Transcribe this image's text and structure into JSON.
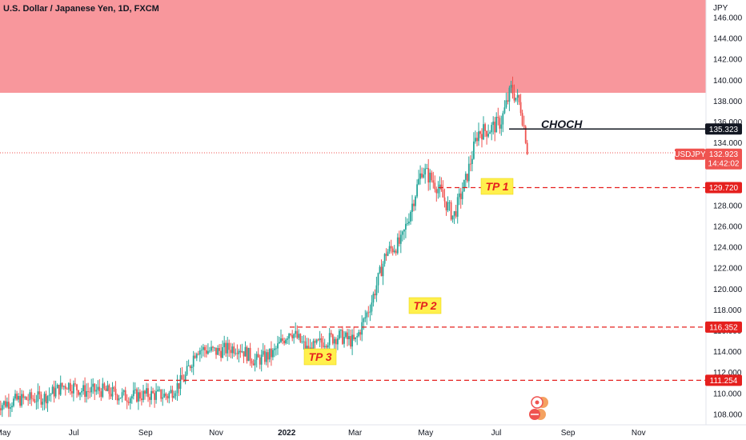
{
  "header": {
    "title": "U.S. Dollar / Japanese Yen, 1D, FXCM"
  },
  "colors": {
    "up": "#26a69a",
    "down": "#ef5350",
    "zone": "#f8979c",
    "target_line": "#e5201e",
    "choch_line": "#131722",
    "tp_box": "#fff04d"
  },
  "chart_data": {
    "type": "candlestick",
    "title": "U.S. Dollar / Japanese Yen, 1D, FXCM",
    "ylabel": "JPY",
    "ylim": [
      106.6,
      147.8
    ],
    "y_ticks": [
      "146.000",
      "144.000",
      "142.000",
      "140.000",
      "138.000",
      "136.000",
      "134.000",
      "132.000",
      "130.000",
      "128.000",
      "126.000",
      "124.000",
      "122.000",
      "120.000",
      "118.000",
      "116.000",
      "114.000",
      "112.000",
      "110.000",
      "108.000"
    ],
    "x_ticks": [
      "May",
      "Jul",
      "Sep",
      "Nov",
      "2022",
      "Mar",
      "May",
      "Jul",
      "Sep",
      "Nov"
    ],
    "x_bold": [
      "2022"
    ],
    "symbol": "USDJPY",
    "last_price": "132.923",
    "countdown": "14:42:02",
    "zones": [
      {
        "from": 139.0,
        "to": 147.8,
        "label": "supply-zone"
      }
    ],
    "levels": [
      {
        "value": 135.323,
        "label": "135.323",
        "style": "solid",
        "annotation": "CHOCH"
      },
      {
        "value": 129.72,
        "label": "129.720",
        "style": "dashed",
        "annotation": "TP 1"
      },
      {
        "value": 116.352,
        "label": "116.352",
        "style": "dashed",
        "annotation": "TP 2"
      },
      {
        "value": 111.254,
        "label": "111.254",
        "style": "dashed",
        "annotation": "TP 3"
      }
    ],
    "price_path": [
      [
        "2021-04-26",
        108.9
      ],
      [
        "2021-05-15",
        109.4
      ],
      [
        "2021-06-05",
        109.6
      ],
      [
        "2021-06-25",
        110.9
      ],
      [
        "2021-07-10",
        110.2
      ],
      [
        "2021-07-25",
        110.3
      ],
      [
        "2021-08-15",
        109.7
      ],
      [
        "2021-09-05",
        109.9
      ],
      [
        "2021-09-20",
        109.8
      ],
      [
        "2021-10-05",
        111.5
      ],
      [
        "2021-10-15",
        114.3
      ],
      [
        "2021-11-01",
        114.0
      ],
      [
        "2021-11-20",
        114.5
      ],
      [
        "2021-12-05",
        113.1
      ],
      [
        "2021-12-20",
        113.8
      ],
      [
        "2022-01-04",
        116.1
      ],
      [
        "2022-01-20",
        114.0
      ],
      [
        "2022-02-01",
        115.0
      ],
      [
        "2022-02-15",
        115.5
      ],
      [
        "2022-03-01",
        114.9
      ],
      [
        "2022-03-15",
        118.7
      ],
      [
        "2022-03-28",
        123.5
      ],
      [
        "2022-04-10",
        124.5
      ],
      [
        "2022-04-28",
        131.5
      ],
      [
        "2022-05-10",
        130.0
      ],
      [
        "2022-05-25",
        126.9
      ],
      [
        "2022-06-05",
        130.5
      ],
      [
        "2022-06-15",
        135.0
      ],
      [
        "2022-06-25",
        135.3
      ],
      [
        "2022-07-05",
        136.0
      ],
      [
        "2022-07-14",
        139.2
      ],
      [
        "2022-07-22",
        137.5
      ],
      [
        "2022-07-29",
        132.9
      ]
    ]
  }
}
